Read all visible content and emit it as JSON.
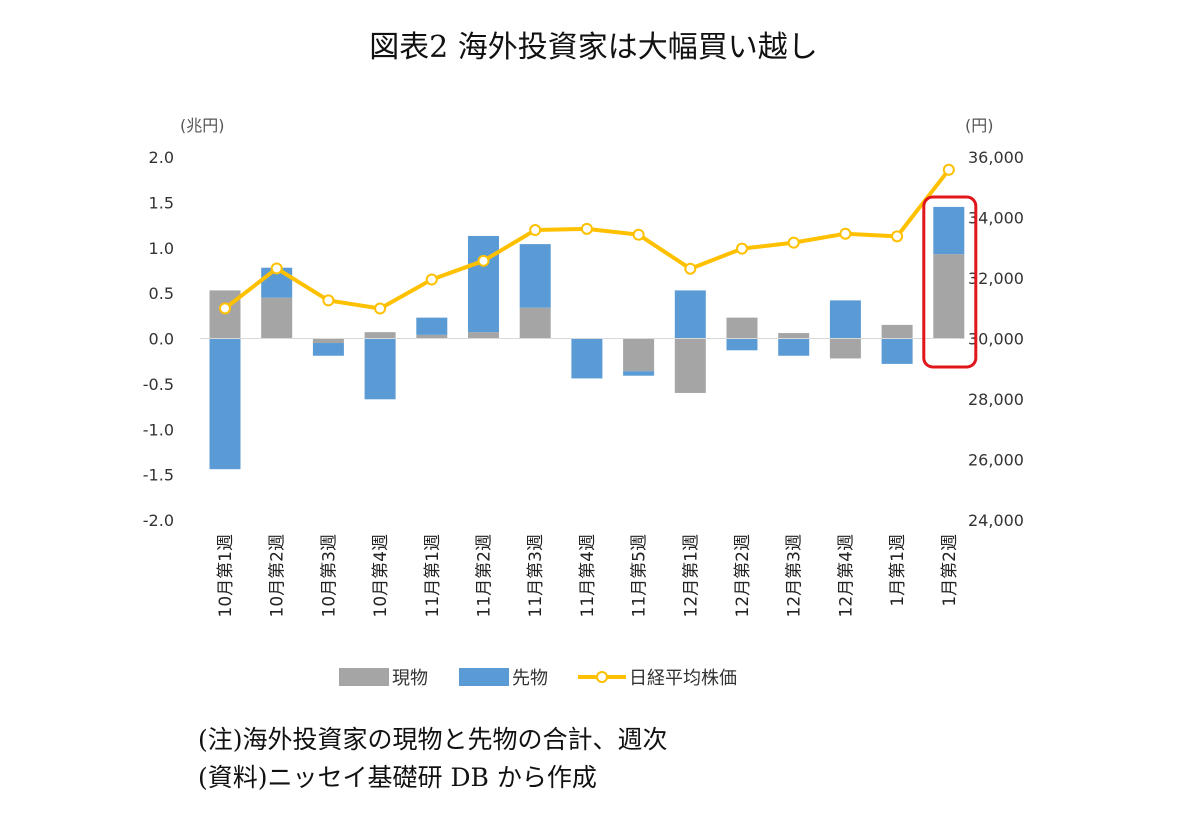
{
  "title": "図表2 海外投資家は大幅買い越し",
  "notes": {
    "note": "(注)海外投資家の現物と先物の合計、週次",
    "source": "(資料)ニッセイ基礎研 DB から作成"
  },
  "colors": {
    "spot": "#a5a5a5",
    "futures": "#5b9bd5",
    "nikkei": "#ffc000",
    "highlight": "#e0161b"
  },
  "chart_data": {
    "type": "bar",
    "stacked": true,
    "secondary_axis": true,
    "categories": [
      "10月第1週",
      "10月第2週",
      "10月第3週",
      "10月第4週",
      "11月第1週",
      "11月第2週",
      "11月第3週",
      "11月第4週",
      "11月第5週",
      "12月第1週",
      "12月第2週",
      "12月第3週",
      "12月第4週",
      "1月第1週",
      "1月第2週"
    ],
    "left_unit": "(兆円)",
    "right_unit": "(円)",
    "left_ticks": [
      "2.0",
      "1.5",
      "1.0",
      "0.5",
      "0.0",
      "-0.5",
      "-1.0",
      "-1.5",
      "-2.0"
    ],
    "right_ticks": [
      "36,000",
      "34,000",
      "32,000",
      "30,000",
      "28,000",
      "26,000",
      "24,000"
    ],
    "ylim_left": [
      -2.0,
      2.0
    ],
    "ylim_right": [
      24000,
      36000
    ],
    "series": [
      {
        "name": "現物",
        "type": "bar",
        "axis": "left",
        "values": [
          0.53,
          0.45,
          -0.05,
          0.07,
          0.04,
          0.07,
          0.34,
          0.0,
          -0.36,
          -0.6,
          0.23,
          0.06,
          -0.22,
          0.15,
          0.93
        ]
      },
      {
        "name": "先物",
        "type": "bar",
        "axis": "left",
        "values": [
          -1.44,
          0.33,
          -0.14,
          -0.67,
          0.19,
          1.06,
          0.7,
          -0.44,
          -0.05,
          0.53,
          -0.13,
          -0.19,
          0.42,
          -0.28,
          0.52
        ]
      },
      {
        "name": "日経平均株価",
        "type": "line",
        "axis": "right",
        "values": [
          30994,
          32316,
          31259,
          30991,
          31950,
          32568,
          33585,
          33625,
          33431,
          32307,
          32970,
          33169,
          33464,
          33377,
          35577
        ]
      }
    ],
    "highlight_category": "1月第2週",
    "grid": false,
    "legend_position": "bottom"
  }
}
